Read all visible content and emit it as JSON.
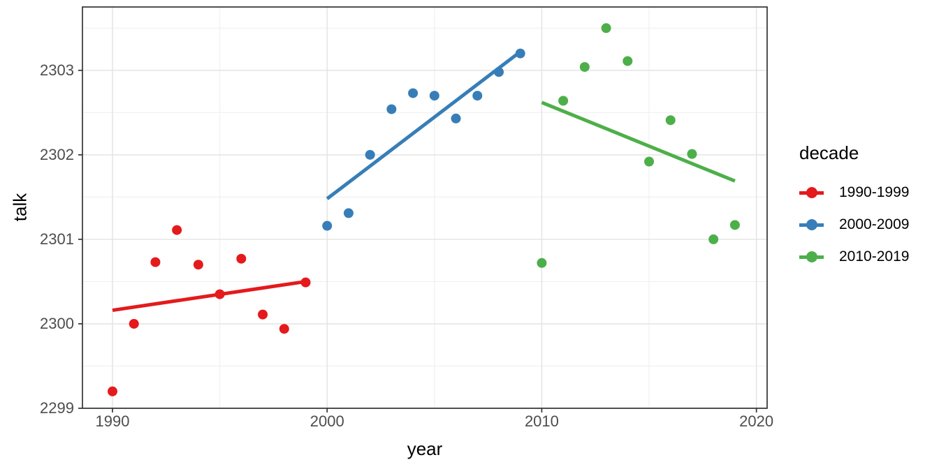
{
  "chart_data": {
    "type": "scatter",
    "title": "",
    "xlabel": "year",
    "ylabel": "talk",
    "legend_title": "decade",
    "legend_position": "right",
    "grid": true,
    "xlim": [
      1988.6,
      2020.5
    ],
    "ylim": [
      2299.0,
      2303.75
    ],
    "x_ticks": [
      1990,
      2000,
      2010,
      2020
    ],
    "x_minor_ticks": [
      1995,
      2005,
      2015
    ],
    "y_ticks": [
      2299,
      2300,
      2301,
      2302,
      2303
    ],
    "y_minor_ticks": [
      2299.5,
      2300.5,
      2301.5,
      2302.5,
      2303.5
    ],
    "series": [
      {
        "name": "1990-1999",
        "color": "#E41A1C",
        "points": [
          [
            1990,
            2299.2
          ],
          [
            1991,
            2300.0
          ],
          [
            1992,
            2300.73
          ],
          [
            1993,
            2301.11
          ],
          [
            1994,
            2300.7
          ],
          [
            1995,
            2300.35
          ],
          [
            1996,
            2300.77
          ],
          [
            1997,
            2300.11
          ],
          [
            1998,
            2299.94
          ],
          [
            1999,
            2300.49
          ]
        ],
        "trend": [
          [
            1990,
            2300.16
          ],
          [
            1999,
            2300.5
          ]
        ]
      },
      {
        "name": "2000-2009",
        "color": "#377EB8",
        "points": [
          [
            2000,
            2301.16
          ],
          [
            2001,
            2301.31
          ],
          [
            2002,
            2302.0
          ],
          [
            2003,
            2302.54
          ],
          [
            2004,
            2302.73
          ],
          [
            2005,
            2302.7
          ],
          [
            2006,
            2302.43
          ],
          [
            2007,
            2302.7
          ],
          [
            2008,
            2302.98
          ],
          [
            2009,
            2303.2
          ]
        ],
        "trend": [
          [
            2000,
            2301.48
          ],
          [
            2009,
            2303.22
          ]
        ]
      },
      {
        "name": "2010-2019",
        "color": "#4DAF4A",
        "points": [
          [
            2010,
            2300.72
          ],
          [
            2011,
            2302.64
          ],
          [
            2012,
            2303.04
          ],
          [
            2013,
            2303.5
          ],
          [
            2014,
            2303.11
          ],
          [
            2015,
            2301.92
          ],
          [
            2016,
            2302.41
          ],
          [
            2017,
            2302.01
          ],
          [
            2018,
            2301.0
          ],
          [
            2019,
            2301.17
          ]
        ],
        "trend": [
          [
            2010,
            2302.62
          ],
          [
            2019,
            2301.69
          ]
        ]
      }
    ],
    "style": {
      "grid_major_color": "#e4e4e4",
      "grid_minor_color": "#f0f0f0",
      "panel_border_color": "#333333",
      "tick_mark_color": "#333333",
      "tick_label_color": "#4d4d4d",
      "point_radius": 7,
      "trend_line_width": 5
    }
  }
}
